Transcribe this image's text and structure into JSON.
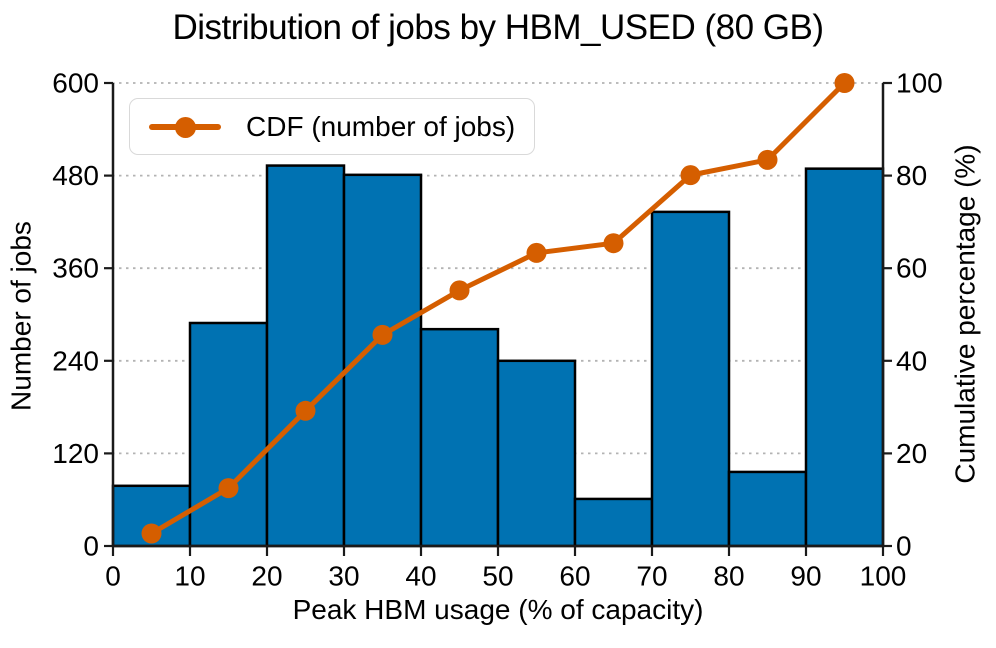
{
  "chart_data": {
    "type": "bar",
    "subtype": "histogram_with_cdf_line",
    "title": "Distribution of jobs by HBM_USED (80 GB)",
    "xlabel": "Peak HBM usage (% of capacity)",
    "ylabel_left": "Number of jobs",
    "ylabel_right": "Cumulative percentage (%)",
    "legend_label": "CDF (number of jobs)",
    "legend_position": "upper-left",
    "grid": "horizontal-dotted",
    "xlim": [
      0,
      100
    ],
    "ylim_left": [
      0,
      600
    ],
    "ylim_right": [
      0,
      100
    ],
    "x_ticks": [
      0,
      10,
      20,
      30,
      40,
      50,
      60,
      70,
      80,
      90,
      100
    ],
    "y_ticks_left": [
      0,
      120,
      240,
      360,
      480,
      600
    ],
    "y_ticks_right": [
      0,
      20,
      40,
      60,
      80,
      100
    ],
    "bin_edges": [
      0,
      10,
      20,
      30,
      40,
      50,
      60,
      70,
      80,
      90,
      100
    ],
    "bar_values": [
      78,
      289,
      493,
      481,
      281,
      240,
      61,
      433,
      96,
      489
    ],
    "cdf_x": [
      5,
      15,
      25,
      35,
      45,
      55,
      65,
      75,
      85,
      95
    ],
    "cdf_percent": [
      2.7,
      12.5,
      29.2,
      45.6,
      55.2,
      63.3,
      65.4,
      80.1,
      83.4,
      100.0
    ],
    "colors": {
      "bar_fill": "#0072b2",
      "bar_edge": "#000000",
      "cdf_line": "#d55e00",
      "grid": "#b3b3b3",
      "spine": "#1a1a1a",
      "text": "#000000"
    }
  }
}
